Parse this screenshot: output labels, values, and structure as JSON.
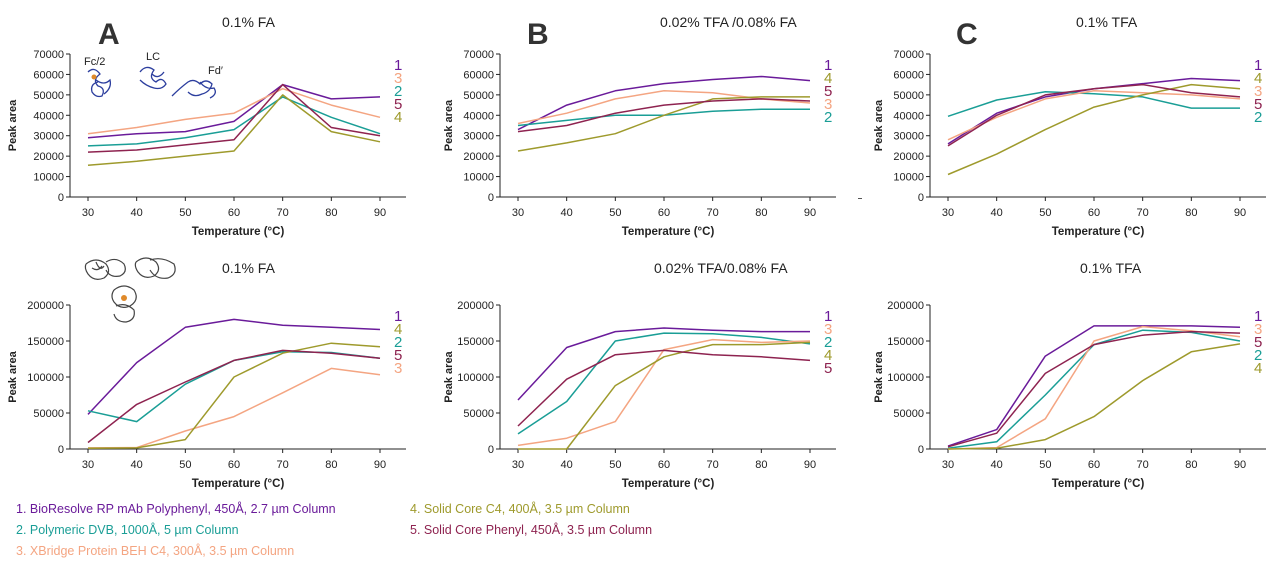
{
  "figure": {
    "panel_letters": [
      "A",
      "B",
      "C"
    ],
    "molecule_labels": {
      "fc": "Fc/2",
      "lc": "LC",
      "fd": "Fd′"
    }
  },
  "series_colors": {
    "1": "#6a1b9a",
    "2": "#1a9e96",
    "3": "#f4a582",
    "4": "#9e9a2c",
    "5": "#8e2350"
  },
  "legend": [
    {
      "id": "1",
      "text": "1.  BioResolve RP mAb  Polyphenyl, 450Å, 2.7 µm Column"
    },
    {
      "id": "2",
      "text": "2.  Polymeric DVB, 1000Å, 5 µm Column"
    },
    {
      "id": "3",
      "text": "3.  XBridge  Protein BEH C4, 300Å, 3.5 µm Column"
    },
    {
      "id": "4",
      "text": "4.  Solid Core C4, 400Å, 3.5 µm Column"
    },
    {
      "id": "5",
      "text": "5.  Solid Core Phenyl, 450Å, 3.5 µm Column"
    }
  ],
  "chart_data": [
    {
      "type": "line",
      "title": "0.1% FA",
      "xlabel": "Temperature (°C)",
      "ylabel": "Peak area",
      "x": [
        30,
        40,
        50,
        60,
        70,
        80,
        90
      ],
      "ylim": [
        0,
        70000
      ],
      "yticks": [
        "0",
        "10000",
        "20000",
        "30000",
        "40000",
        "50000",
        "60000",
        "70000"
      ],
      "right_labels": [
        "1",
        "3",
        "2",
        "5",
        "4"
      ],
      "series": [
        {
          "name": "1",
          "values": [
            29000,
            31000,
            32000,
            37000,
            55000,
            48000,
            49000
          ]
        },
        {
          "name": "2",
          "values": [
            25000,
            26000,
            29000,
            33000,
            49000,
            39000,
            31000
          ]
        },
        {
          "name": "3",
          "values": [
            31000,
            34000,
            38000,
            41000,
            53000,
            45000,
            39000
          ]
        },
        {
          "name": "4",
          "values": [
            15500,
            17500,
            20000,
            22500,
            50000,
            32000,
            27000
          ]
        },
        {
          "name": "5",
          "values": [
            22000,
            23000,
            25500,
            28000,
            55000,
            34000,
            30000
          ]
        }
      ]
    },
    {
      "type": "line",
      "title": "0.02% TFA /0.08% FA",
      "xlabel": "Temperature (°C)",
      "ylabel": "Peak area",
      "x": [
        30,
        40,
        50,
        60,
        70,
        80,
        90
      ],
      "ylim": [
        0,
        70000
      ],
      "yticks": [
        "0",
        "10000",
        "20000",
        "30000",
        "40000",
        "50000",
        "60000",
        "70000"
      ],
      "right_labels": [
        "1",
        "4",
        "5",
        "3",
        "2"
      ],
      "series": [
        {
          "name": "1",
          "values": [
            33000,
            45000,
            52000,
            55500,
            57500,
            59000,
            57000
          ]
        },
        {
          "name": "2",
          "values": [
            35000,
            37500,
            40000,
            40000,
            42000,
            43000,
            43000
          ]
        },
        {
          "name": "3",
          "values": [
            36000,
            41000,
            48000,
            52000,
            51000,
            48000,
            46000
          ]
        },
        {
          "name": "4",
          "values": [
            22500,
            26500,
            31000,
            40000,
            48000,
            49000,
            49000
          ]
        },
        {
          "name": "5",
          "values": [
            32000,
            35000,
            41000,
            45000,
            47000,
            48000,
            47000
          ]
        }
      ]
    },
    {
      "type": "line",
      "title": "0.1% TFA",
      "xlabel": "Temperature (°C)",
      "ylabel": "Peak area",
      "x": [
        30,
        40,
        50,
        60,
        70,
        80,
        90
      ],
      "ylim": [
        0,
        70000
      ],
      "yticks": [
        "0",
        "10000",
        "20000",
        "30000",
        "40000",
        "50000",
        "60000",
        "70000"
      ],
      "right_labels": [
        "1",
        "4",
        "3",
        "5",
        "2"
      ],
      "series": [
        {
          "name": "1",
          "values": [
            26000,
            41000,
            49000,
            53000,
            55500,
            58000,
            57000
          ]
        },
        {
          "name": "2",
          "values": [
            39500,
            47500,
            51500,
            50500,
            49000,
            43500,
            43500
          ]
        },
        {
          "name": "3",
          "values": [
            28000,
            39000,
            48000,
            52000,
            51000,
            50000,
            48000
          ]
        },
        {
          "name": "4",
          "values": [
            11000,
            21000,
            33000,
            44000,
            50000,
            55000,
            53000
          ]
        },
        {
          "name": "5",
          "values": [
            25000,
            40000,
            50000,
            53000,
            55000,
            51000,
            49000
          ]
        }
      ]
    },
    {
      "type": "line",
      "title": "0.1% FA",
      "xlabel": "Temperature (°C)",
      "ylabel": "Peak area",
      "x": [
        30,
        40,
        50,
        60,
        70,
        80,
        90
      ],
      "ylim": [
        0,
        200000
      ],
      "yticks": [
        "0",
        "50000",
        "100000",
        "150000",
        "200000"
      ],
      "right_labels": [
        "1",
        "4",
        "2",
        "5",
        "3"
      ],
      "series": [
        {
          "name": "1",
          "values": [
            48000,
            120000,
            169000,
            180000,
            172000,
            169000,
            166000
          ]
        },
        {
          "name": "2",
          "values": [
            53000,
            38000,
            90000,
            123000,
            135000,
            134000,
            126000
          ]
        },
        {
          "name": "3",
          "values": [
            1500,
            2000,
            25000,
            45000,
            78000,
            112000,
            103000
          ]
        },
        {
          "name": "4",
          "values": [
            1000,
            1500,
            13000,
            100000,
            133000,
            147000,
            142000
          ]
        },
        {
          "name": "5",
          "values": [
            9000,
            62000,
            93000,
            123000,
            137000,
            133000,
            126000
          ]
        }
      ]
    },
    {
      "type": "line",
      "title": "0.02% TFA/0.08% FA",
      "xlabel": "Temperature (°C)",
      "ylabel": "Peak area",
      "x": [
        30,
        40,
        50,
        60,
        70,
        80,
        90
      ],
      "ylim": [
        0,
        200000
      ],
      "yticks": [
        "0",
        "50000",
        "100000",
        "150000",
        "200000"
      ],
      "right_labels": [
        "1",
        "3",
        "2",
        "4",
        "5"
      ],
      "series": [
        {
          "name": "1",
          "values": [
            68000,
            141000,
            163000,
            168000,
            165000,
            163000,
            163000
          ]
        },
        {
          "name": "2",
          "values": [
            21000,
            66000,
            150000,
            161000,
            160000,
            155000,
            146000
          ]
        },
        {
          "name": "3",
          "values": [
            5000,
            15000,
            38000,
            138000,
            152000,
            148000,
            150000
          ]
        },
        {
          "name": "4",
          "values": [
            0,
            0,
            88000,
            128000,
            145000,
            145000,
            148000
          ]
        },
        {
          "name": "5",
          "values": [
            32000,
            97000,
            131000,
            137000,
            131000,
            128000,
            123000
          ]
        }
      ]
    },
    {
      "type": "line",
      "title": "0.1% TFA",
      "xlabel": "Temperature (°C)",
      "ylabel": "Peak area",
      "x": [
        30,
        40,
        50,
        60,
        70,
        80,
        90
      ],
      "ylim": [
        0,
        200000
      ],
      "yticks": [
        "0",
        "50000",
        "100000",
        "150000",
        "200000"
      ],
      "right_labels": [
        "1",
        "3",
        "5",
        "2",
        "4"
      ],
      "series": [
        {
          "name": "1",
          "values": [
            4000,
            27000,
            129000,
            171000,
            171000,
            171000,
            169000
          ]
        },
        {
          "name": "2",
          "values": [
            1000,
            10000,
            75000,
            145000,
            165000,
            162000,
            150000
          ]
        },
        {
          "name": "3",
          "values": [
            0,
            2000,
            42000,
            150000,
            170000,
            164000,
            156000
          ]
        },
        {
          "name": "4",
          "values": [
            0,
            1000,
            13000,
            45000,
            95000,
            135000,
            146000
          ]
        },
        {
          "name": "5",
          "values": [
            3000,
            22000,
            105000,
            145000,
            158000,
            163000,
            161000
          ]
        }
      ]
    }
  ]
}
